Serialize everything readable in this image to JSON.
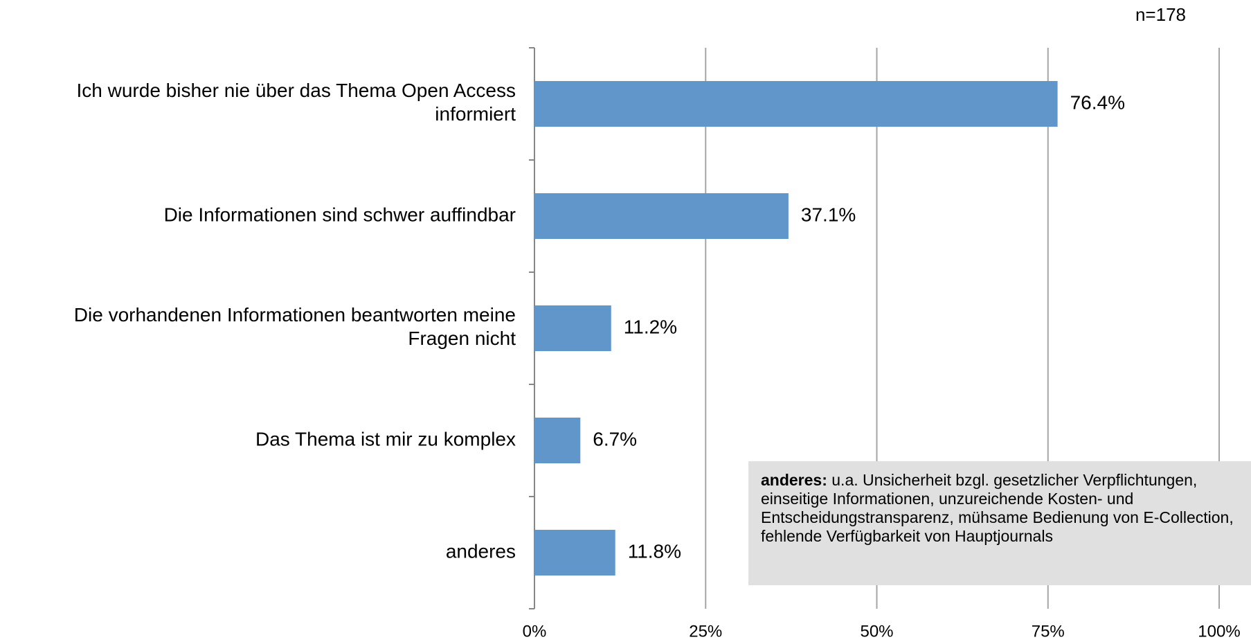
{
  "chart_data": {
    "type": "bar",
    "orientation": "horizontal",
    "subtitle": "n=178",
    "categories": [
      "Ich wurde bisher nie über das Thema Open Access\ninformiert",
      "Die Informationen sind schwer auffindbar",
      "Die vorhandenen Informationen beantworten meine\nFragen nicht",
      "Das Thema ist mir zu komplex",
      "anderes"
    ],
    "values": [
      76.4,
      37.1,
      11.2,
      6.7,
      11.8
    ],
    "value_labels": [
      "76.4%",
      "37.1%",
      "11.2%",
      "6.7%",
      "11.8%"
    ],
    "color": "#6196cb",
    "xlim": [
      0,
      100
    ],
    "xticks": [
      {
        "value": 0,
        "label": "0%"
      },
      {
        "value": 25,
        "label": "25%"
      },
      {
        "value": 50,
        "label": "50%"
      },
      {
        "value": 75,
        "label": "75%"
      },
      {
        "value": 100,
        "label": "100%"
      }
    ],
    "grid": true,
    "annotation": {
      "term": "anderes:",
      "text": "u.a. Unsicherheit bzgl. gesetzlicher Verpflichtungen, einseitige Informationen, unzureichende Kosten- und Entscheidungstransparenz, mühsame Bedienung von E-Collection, fehlende Verfügbarkeit von Hauptjournals"
    }
  }
}
